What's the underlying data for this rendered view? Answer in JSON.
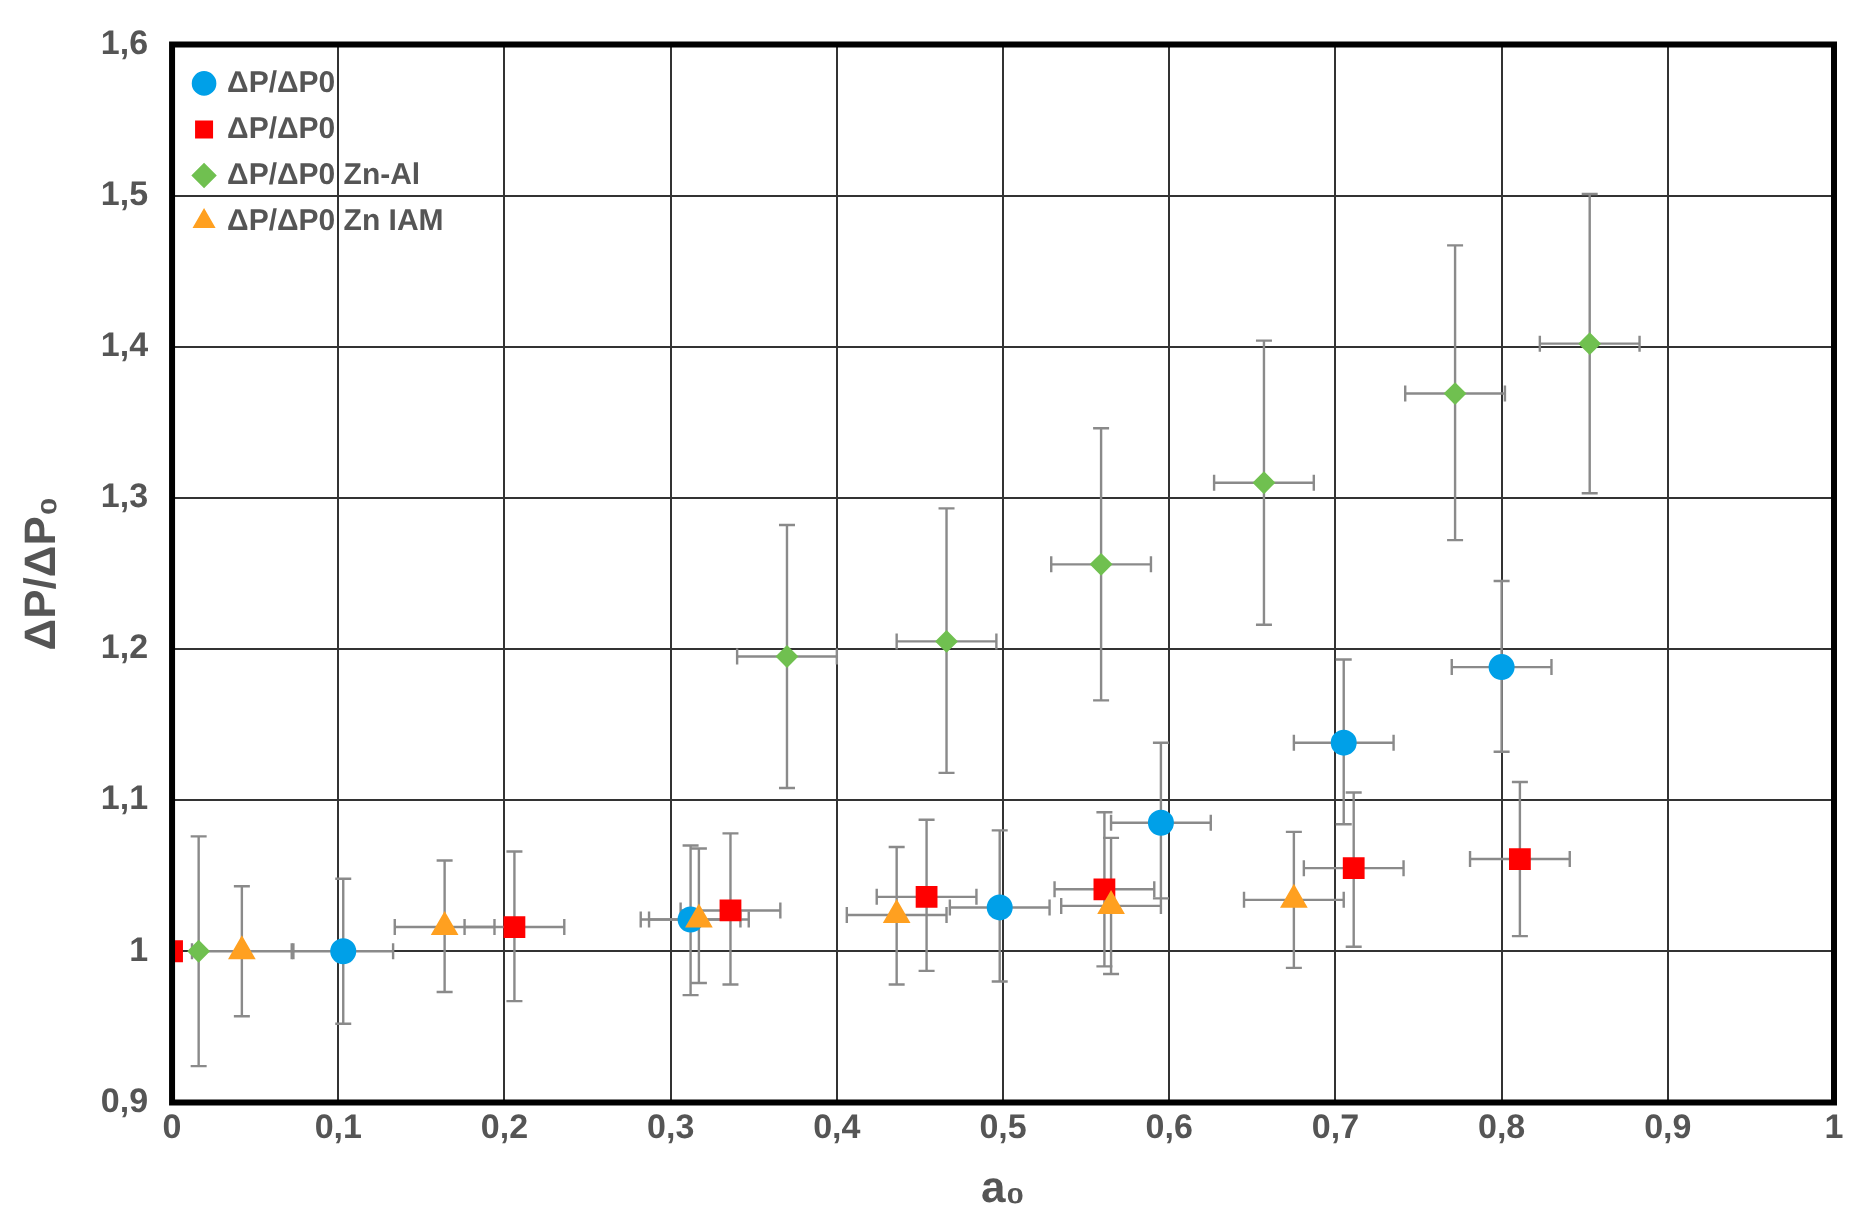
{
  "chart_data": {
    "type": "scatter",
    "xlabel": "a₀",
    "ylabel": "ΔP/ΔP₀",
    "xlim": [
      0,
      1
    ],
    "xticks": [
      {
        "value": 0,
        "label": "0"
      },
      {
        "value": 0.1,
        "label": "0,1"
      },
      {
        "value": 0.2,
        "label": "0,2"
      },
      {
        "value": 0.3,
        "label": "0,3"
      },
      {
        "value": 0.4,
        "label": "0,4"
      },
      {
        "value": 0.5,
        "label": "0,5"
      },
      {
        "value": 0.6,
        "label": "0,6"
      },
      {
        "value": 0.7,
        "label": "0,7"
      },
      {
        "value": 0.8,
        "label": "0,8"
      },
      {
        "value": 0.9,
        "label": "0,9"
      },
      {
        "value": 1,
        "label": "1"
      }
    ],
    "ylim": [
      0.9,
      1.6
    ],
    "yticks": [
      {
        "value": 0.9,
        "label": "0,9"
      },
      {
        "value": 1,
        "label": "1"
      },
      {
        "value": 1.1,
        "label": "1,1"
      },
      {
        "value": 1.2,
        "label": "1,2"
      },
      {
        "value": 1.3,
        "label": "1,3"
      },
      {
        "value": 1.4,
        "label": "1,4"
      },
      {
        "value": 1.5,
        "label": "1,5"
      },
      {
        "value": 1.6,
        "label": "1,6"
      }
    ],
    "grid": true,
    "legend": "top left",
    "series": [
      {
        "name": "ΔP/ΔP0",
        "color": "#00a0e8",
        "marker": "circle",
        "x": [
          0.103,
          0.312,
          0.498,
          0.595,
          0.705,
          0.8
        ],
        "values": [
          1.0,
          1.021,
          1.029,
          1.085,
          1.138,
          1.188
        ],
        "errors": [
          [
            0.952,
            1.048
          ],
          [
            0.971,
            1.07
          ],
          [
            0.98,
            1.08
          ],
          [
            1.035,
            1.138
          ],
          [
            1.084,
            1.193
          ],
          [
            1.132,
            1.245
          ]
        ],
        "xerrors": [
          0.03,
          0.03,
          0.03,
          0.03,
          0.03,
          0.03
        ]
      },
      {
        "name": "ΔP/ΔP0",
        "color": "#ff0000",
        "marker": "square",
        "x": [
          0,
          0.206,
          0.336,
          0.454,
          0.561,
          0.711,
          0.811
        ],
        "values": [
          1.0,
          1.016,
          1.027,
          1.036,
          1.041,
          1.055,
          1.061
        ],
        "errors": [
          null,
          [
            0.967,
            1.066
          ],
          [
            0.978,
            1.078
          ],
          [
            0.987,
            1.087
          ],
          [
            0.99,
            1.092
          ],
          [
            1.003,
            1.105
          ],
          [
            1.01,
            1.112
          ]
        ],
        "xerrors": [
          null,
          0.03,
          0.03,
          0.03,
          0.03,
          0.03,
          0.03
        ]
      },
      {
        "name": "ΔP/ΔP0 Zn-Al",
        "color": "#70c050",
        "marker": "diamond",
        "x": [
          0.016,
          0.37,
          0.466,
          0.559,
          0.657,
          0.772,
          0.853
        ],
        "values": [
          1.0,
          1.195,
          1.205,
          1.256,
          1.31,
          1.369,
          1.402
        ],
        "errors": [
          [
            0.924,
            1.076
          ],
          [
            1.108,
            1.282
          ],
          [
            1.118,
            1.293
          ],
          [
            1.166,
            1.346
          ],
          [
            1.216,
            1.404
          ],
          [
            1.272,
            1.467
          ],
          [
            1.303,
            1.501
          ]
        ],
        "xerrors": [
          null,
          0.03,
          0.03,
          0.03,
          0.03,
          0.03,
          0.03
        ]
      },
      {
        "name": "ΔP/ΔP0 Zn IAM",
        "color": "#ffa020",
        "marker": "triangle",
        "x": [
          0.042,
          0.164,
          0.317,
          0.436,
          0.565,
          0.675
        ],
        "values": [
          1.0,
          1.016,
          1.021,
          1.024,
          1.03,
          1.034
        ],
        "errors": [
          [
            0.957,
            1.043
          ],
          [
            0.973,
            1.06
          ],
          [
            0.979,
            1.068
          ],
          [
            0.978,
            1.069
          ],
          [
            0.985,
            1.075
          ],
          [
            0.989,
            1.079
          ]
        ],
        "xerrors": [
          0.03,
          0.03,
          0.03,
          0.03,
          0.03,
          0.03
        ]
      }
    ]
  }
}
